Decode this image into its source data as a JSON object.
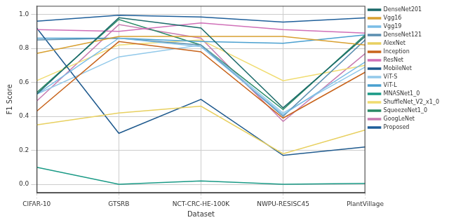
{
  "chart_data": {
    "type": "line",
    "x_label": "Dataset",
    "y_label": "F1 Score",
    "categories": [
      "CIFAR-10",
      "GTSRB",
      "NCT-CRC-HE-100K",
      "NWPU-RESISC45",
      "PlantVillage"
    ],
    "ylim": [
      -0.05,
      1.05
    ],
    "yticks": [
      {
        "value": 0,
        "label": "0.0"
      },
      0.2,
      0.4,
      0.6,
      0.8,
      {
        "value": 1,
        "label": "1.0"
      }
    ],
    "grid": true,
    "legend": "right",
    "series": [
      {
        "name": "DenseNet201",
        "color": "#1b6a6a",
        "values": [
          0.53,
          0.98,
          0.92,
          0.45,
          0.87
        ]
      },
      {
        "name": "Vgg16",
        "color": "#d8a030",
        "values": [
          0.77,
          0.87,
          0.87,
          0.87,
          0.82
        ]
      },
      {
        "name": "Vgg19",
        "color": "#7bbde6",
        "values": [
          0.53,
          0.86,
          0.81,
          0.41,
          0.72
        ]
      },
      {
        "name": "DenseNet121",
        "color": "#5b8fb0",
        "values": [
          0.85,
          0.86,
          0.82,
          0.4,
          0.85
        ]
      },
      {
        "name": "AlexNet",
        "color": "#e8d060",
        "values": [
          0.35,
          0.42,
          0.46,
          0.18,
          0.32
        ]
      },
      {
        "name": "Inception",
        "color": "#c8641c",
        "values": [
          0.43,
          0.84,
          0.78,
          0.39,
          0.66
        ]
      },
      {
        "name": "ResNet",
        "color": "#d070b8",
        "values": [
          0.91,
          0.9,
          0.95,
          0.91,
          0.89
        ]
      },
      {
        "name": "MobileNet",
        "color": "#1f5a8e",
        "values": [
          0.92,
          0.3,
          0.5,
          0.17,
          0.22
        ]
      },
      {
        "name": "ViT-S",
        "color": "#92c9ea",
        "values": [
          0.53,
          0.75,
          0.82,
          0.42,
          0.69
        ]
      },
      {
        "name": "ViT-L",
        "color": "#4aa0d0",
        "values": [
          0.86,
          0.86,
          0.84,
          0.83,
          0.88
        ]
      },
      {
        "name": "MNASNet1_0",
        "color": "#1a9a86",
        "values": [
          0.1,
          0.0,
          0.02,
          0.0,
          0.005
        ]
      },
      {
        "name": "ShuffleNet_V2_x1_0",
        "color": "#f0dc70",
        "values": [
          0.61,
          0.82,
          0.85,
          0.61,
          0.7
        ]
      },
      {
        "name": "SqueezeNet1_0",
        "color": "#2a8a66",
        "values": [
          0.54,
          0.97,
          0.82,
          0.44,
          0.88
        ]
      },
      {
        "name": "GoogLeNet",
        "color": "#c77bb0",
        "values": [
          0.49,
          0.94,
          0.86,
          0.37,
          0.77
        ]
      },
      {
        "name": "Proposed",
        "color": "#1f5f9a",
        "values": [
          0.96,
          0.995,
          0.985,
          0.955,
          0.98
        ]
      }
    ]
  }
}
